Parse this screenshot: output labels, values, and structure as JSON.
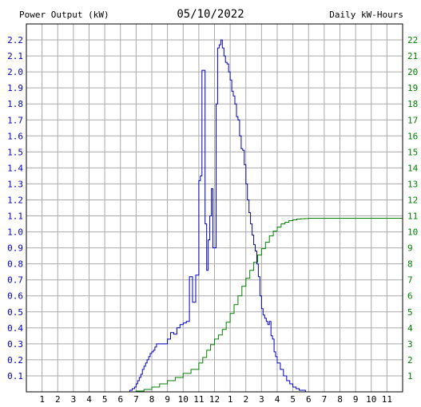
{
  "header": {
    "left_title": "Power Output (kW)",
    "date": "05/10/2022",
    "right_title": "Daily kW-Hours"
  },
  "colors": {
    "power": "#0000c0",
    "energy": "#008000",
    "grid": "#aaaaaa",
    "axis_text": "#000000"
  },
  "chart_data": {
    "type": "line",
    "title": "05/10/2022",
    "x_tick_labels": [
      "1",
      "2",
      "3",
      "4",
      "5",
      "6",
      "7",
      "8",
      "9",
      "10",
      "11",
      "12",
      "1",
      "2",
      "3",
      "4",
      "5",
      "6",
      "7",
      "8",
      "9",
      "10",
      "11"
    ],
    "xlim": [
      0,
      24
    ],
    "grid": true,
    "y_left": {
      "label": "Power Output (kW)",
      "lim": [
        0,
        2.3
      ],
      "ticks": [
        "0.1",
        "0.2",
        "0.3",
        "0.4",
        "0.5",
        "0.6",
        "0.7",
        "0.8",
        "0.9",
        "1.0",
        "1.1",
        "1.2",
        "1.3",
        "1.4",
        "1.5",
        "1.6",
        "1.7",
        "1.8",
        "1.9",
        "2.0",
        "2.1",
        "2.2"
      ]
    },
    "y_right": {
      "label": "Daily kW-Hours",
      "lim": [
        0,
        23
      ],
      "ticks": [
        "1",
        "2",
        "3",
        "4",
        "5",
        "6",
        "7",
        "8",
        "9",
        "10",
        "11",
        "12",
        "13",
        "14",
        "15",
        "16",
        "17",
        "18",
        "19",
        "20",
        "21",
        "22"
      ]
    },
    "series": [
      {
        "name": "Power Output (kW)",
        "axis": "left",
        "x": [
          0,
          6.0,
          6.6,
          6.75,
          6.9,
          7.0,
          7.1,
          7.2,
          7.3,
          7.4,
          7.5,
          7.6,
          7.7,
          7.8,
          7.9,
          8.0,
          8.1,
          8.2,
          8.3,
          8.4,
          8.5,
          8.6,
          8.7,
          8.8,
          8.9,
          9.0,
          9.2,
          9.4,
          9.6,
          9.8,
          10.0,
          10.2,
          10.4,
          10.6,
          10.8,
          11.0,
          11.1,
          11.2,
          11.3,
          11.4,
          11.5,
          11.6,
          11.7,
          11.8,
          11.9,
          12.0,
          12.1,
          12.2,
          12.3,
          12.4,
          12.5,
          12.6,
          12.7,
          12.8,
          12.9,
          13.0,
          13.1,
          13.2,
          13.3,
          13.4,
          13.5,
          13.6,
          13.7,
          13.8,
          13.9,
          14.0,
          14.1,
          14.2,
          14.3,
          14.4,
          14.5,
          14.6,
          14.7,
          14.8,
          14.9,
          15.0,
          15.1,
          15.2,
          15.3,
          15.4,
          15.5,
          15.6,
          15.7,
          15.8,
          15.9,
          16.0,
          16.2,
          16.4,
          16.6,
          16.8,
          17.0,
          17.2,
          17.4,
          17.6,
          17.8,
          18.0,
          18.2,
          18.4,
          18.6,
          18.8,
          19.0,
          19.2,
          19.4,
          19.6,
          19.8,
          20.0,
          24.0
        ],
        "values": [
          0,
          0,
          0.01,
          0.02,
          0.03,
          0.05,
          0.07,
          0.09,
          0.11,
          0.14,
          0.16,
          0.18,
          0.2,
          0.22,
          0.24,
          0.25,
          0.26,
          0.28,
          0.3,
          0.3,
          0.3,
          0.3,
          0.3,
          0.3,
          0.3,
          0.33,
          0.37,
          0.36,
          0.4,
          0.42,
          0.43,
          0.44,
          0.72,
          0.56,
          0.73,
          1.32,
          1.35,
          2.01,
          2.01,
          1.05,
          0.76,
          0.95,
          1.1,
          1.27,
          0.9,
          0.9,
          1.8,
          2.15,
          2.17,
          2.2,
          2.15,
          2.1,
          2.06,
          2.05,
          2.0,
          1.95,
          1.88,
          1.85,
          1.8,
          1.72,
          1.7,
          1.6,
          1.52,
          1.51,
          1.42,
          1.3,
          1.2,
          1.12,
          1.05,
          0.98,
          0.92,
          0.88,
          0.8,
          0.72,
          0.6,
          0.52,
          0.48,
          0.46,
          0.44,
          0.42,
          0.44,
          0.35,
          0.33,
          0.25,
          0.22,
          0.18,
          0.14,
          0.1,
          0.07,
          0.05,
          0.03,
          0.02,
          0.01,
          0.01,
          0,
          0,
          0,
          0,
          0,
          0,
          0,
          0,
          0,
          0,
          0,
          0,
          0
        ]
      },
      {
        "name": "Daily kW-Hours",
        "axis": "right",
        "x": [
          6.5,
          7.0,
          7.5,
          8.0,
          8.5,
          9.0,
          9.5,
          10.0,
          10.5,
          11.0,
          11.25,
          11.5,
          11.75,
          12.0,
          12.25,
          12.5,
          12.75,
          13.0,
          13.25,
          13.5,
          13.75,
          14.0,
          14.25,
          14.5,
          14.75,
          15.0,
          15.25,
          15.5,
          15.75,
          16.0,
          16.25,
          16.5,
          16.75,
          17.0,
          17.25,
          17.5,
          17.75,
          18.0,
          18.5,
          19.0,
          19.5,
          20.0,
          24.0
        ],
        "values": [
          0,
          0.05,
          0.15,
          0.3,
          0.5,
          0.7,
          0.9,
          1.15,
          1.4,
          1.8,
          2.15,
          2.6,
          2.95,
          3.3,
          3.55,
          3.9,
          4.35,
          4.9,
          5.45,
          6.0,
          6.6,
          7.1,
          7.6,
          8.1,
          8.55,
          8.95,
          9.35,
          9.75,
          10.05,
          10.3,
          10.5,
          10.6,
          10.7,
          10.75,
          10.8,
          10.82,
          10.83,
          10.85,
          10.85,
          10.85,
          10.85,
          10.85,
          10.85
        ]
      }
    ]
  }
}
